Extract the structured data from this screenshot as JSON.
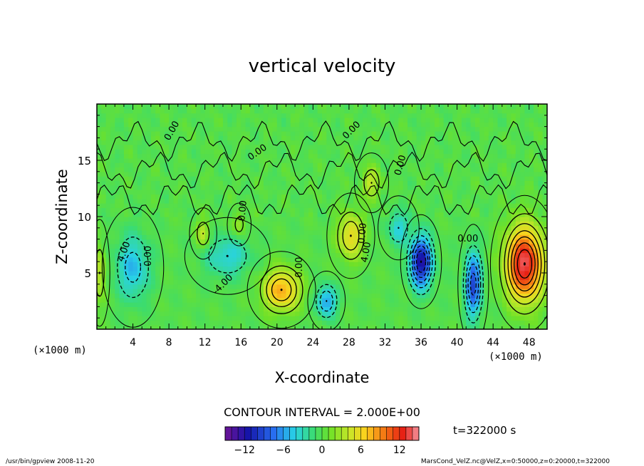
{
  "chart_data": {
    "type": "heatmap",
    "title": "vertical velocity",
    "xlabel": "X-coordinate",
    "ylabel": "Z-coordinate",
    "x_unit": "(×1000 m)",
    "y_unit": "(×1000 m)",
    "xlim": [
      0,
      50
    ],
    "ylim": [
      0,
      20
    ],
    "x_ticks": [
      4,
      8,
      12,
      16,
      20,
      24,
      28,
      32,
      36,
      40,
      44,
      48
    ],
    "y_ticks": [
      5,
      10,
      15
    ],
    "contour_interval": "CONTOUR INTERVAL = 2.000E+00",
    "contour_labels": [
      "0.00",
      "4.00",
      "-4.00"
    ],
    "time_label": "t=322000 s",
    "colorbar": {
      "min": -15,
      "max": 15,
      "ticks": [
        -12,
        -6,
        0,
        6,
        12
      ]
    },
    "field_features": [
      {
        "sign": "positive",
        "x": 47.5,
        "z": 5.8,
        "peak": 14,
        "sx": 2.0,
        "sz": 3.2
      },
      {
        "sign": "positive",
        "x": 20.5,
        "z": 3.5,
        "peak": 8,
        "sx": 2.0,
        "sz": 1.8
      },
      {
        "sign": "positive",
        "x": 28.2,
        "z": 8.3,
        "peak": 6,
        "sx": 1.4,
        "sz": 2.0
      },
      {
        "sign": "positive",
        "x": 30.5,
        "z": 13.0,
        "peak": 4,
        "sx": 1.0,
        "sz": 1.4
      },
      {
        "sign": "positive",
        "x": 11.8,
        "z": 8.5,
        "peak": 4,
        "sx": 0.8,
        "sz": 1.2
      },
      {
        "sign": "positive",
        "x": 15.8,
        "z": 9.3,
        "peak": 3,
        "sx": 0.7,
        "sz": 1.0
      },
      {
        "sign": "positive",
        "x": 0.3,
        "z": 5.0,
        "peak": 4,
        "sx": 0.6,
        "sz": 2.5
      },
      {
        "sign": "negative",
        "x": 36.0,
        "z": 6.0,
        "peak": -12,
        "sx": 1.2,
        "sz": 2.2
      },
      {
        "sign": "negative",
        "x": 41.8,
        "z": 4.0,
        "peak": -9,
        "sx": 0.9,
        "sz": 2.8
      },
      {
        "sign": "negative",
        "x": 4.0,
        "z": 5.5,
        "peak": -5,
        "sx": 1.8,
        "sz": 2.8
      },
      {
        "sign": "negative",
        "x": 14.5,
        "z": 6.5,
        "peak": -4,
        "sx": 2.5,
        "sz": 1.8
      },
      {
        "sign": "negative",
        "x": 25.5,
        "z": 2.5,
        "peak": -6,
        "sx": 1.1,
        "sz": 1.4
      },
      {
        "sign": "negative",
        "x": 33.5,
        "z": 9.0,
        "peak": -4,
        "sx": 1.2,
        "sz": 1.5
      }
    ]
  },
  "footer": {
    "left": "/usr/bin/gpview  2008-11-20",
    "right": "MarsCond_VelZ.nc@VelZ,x=0:50000,z=0:20000,t=322000"
  }
}
